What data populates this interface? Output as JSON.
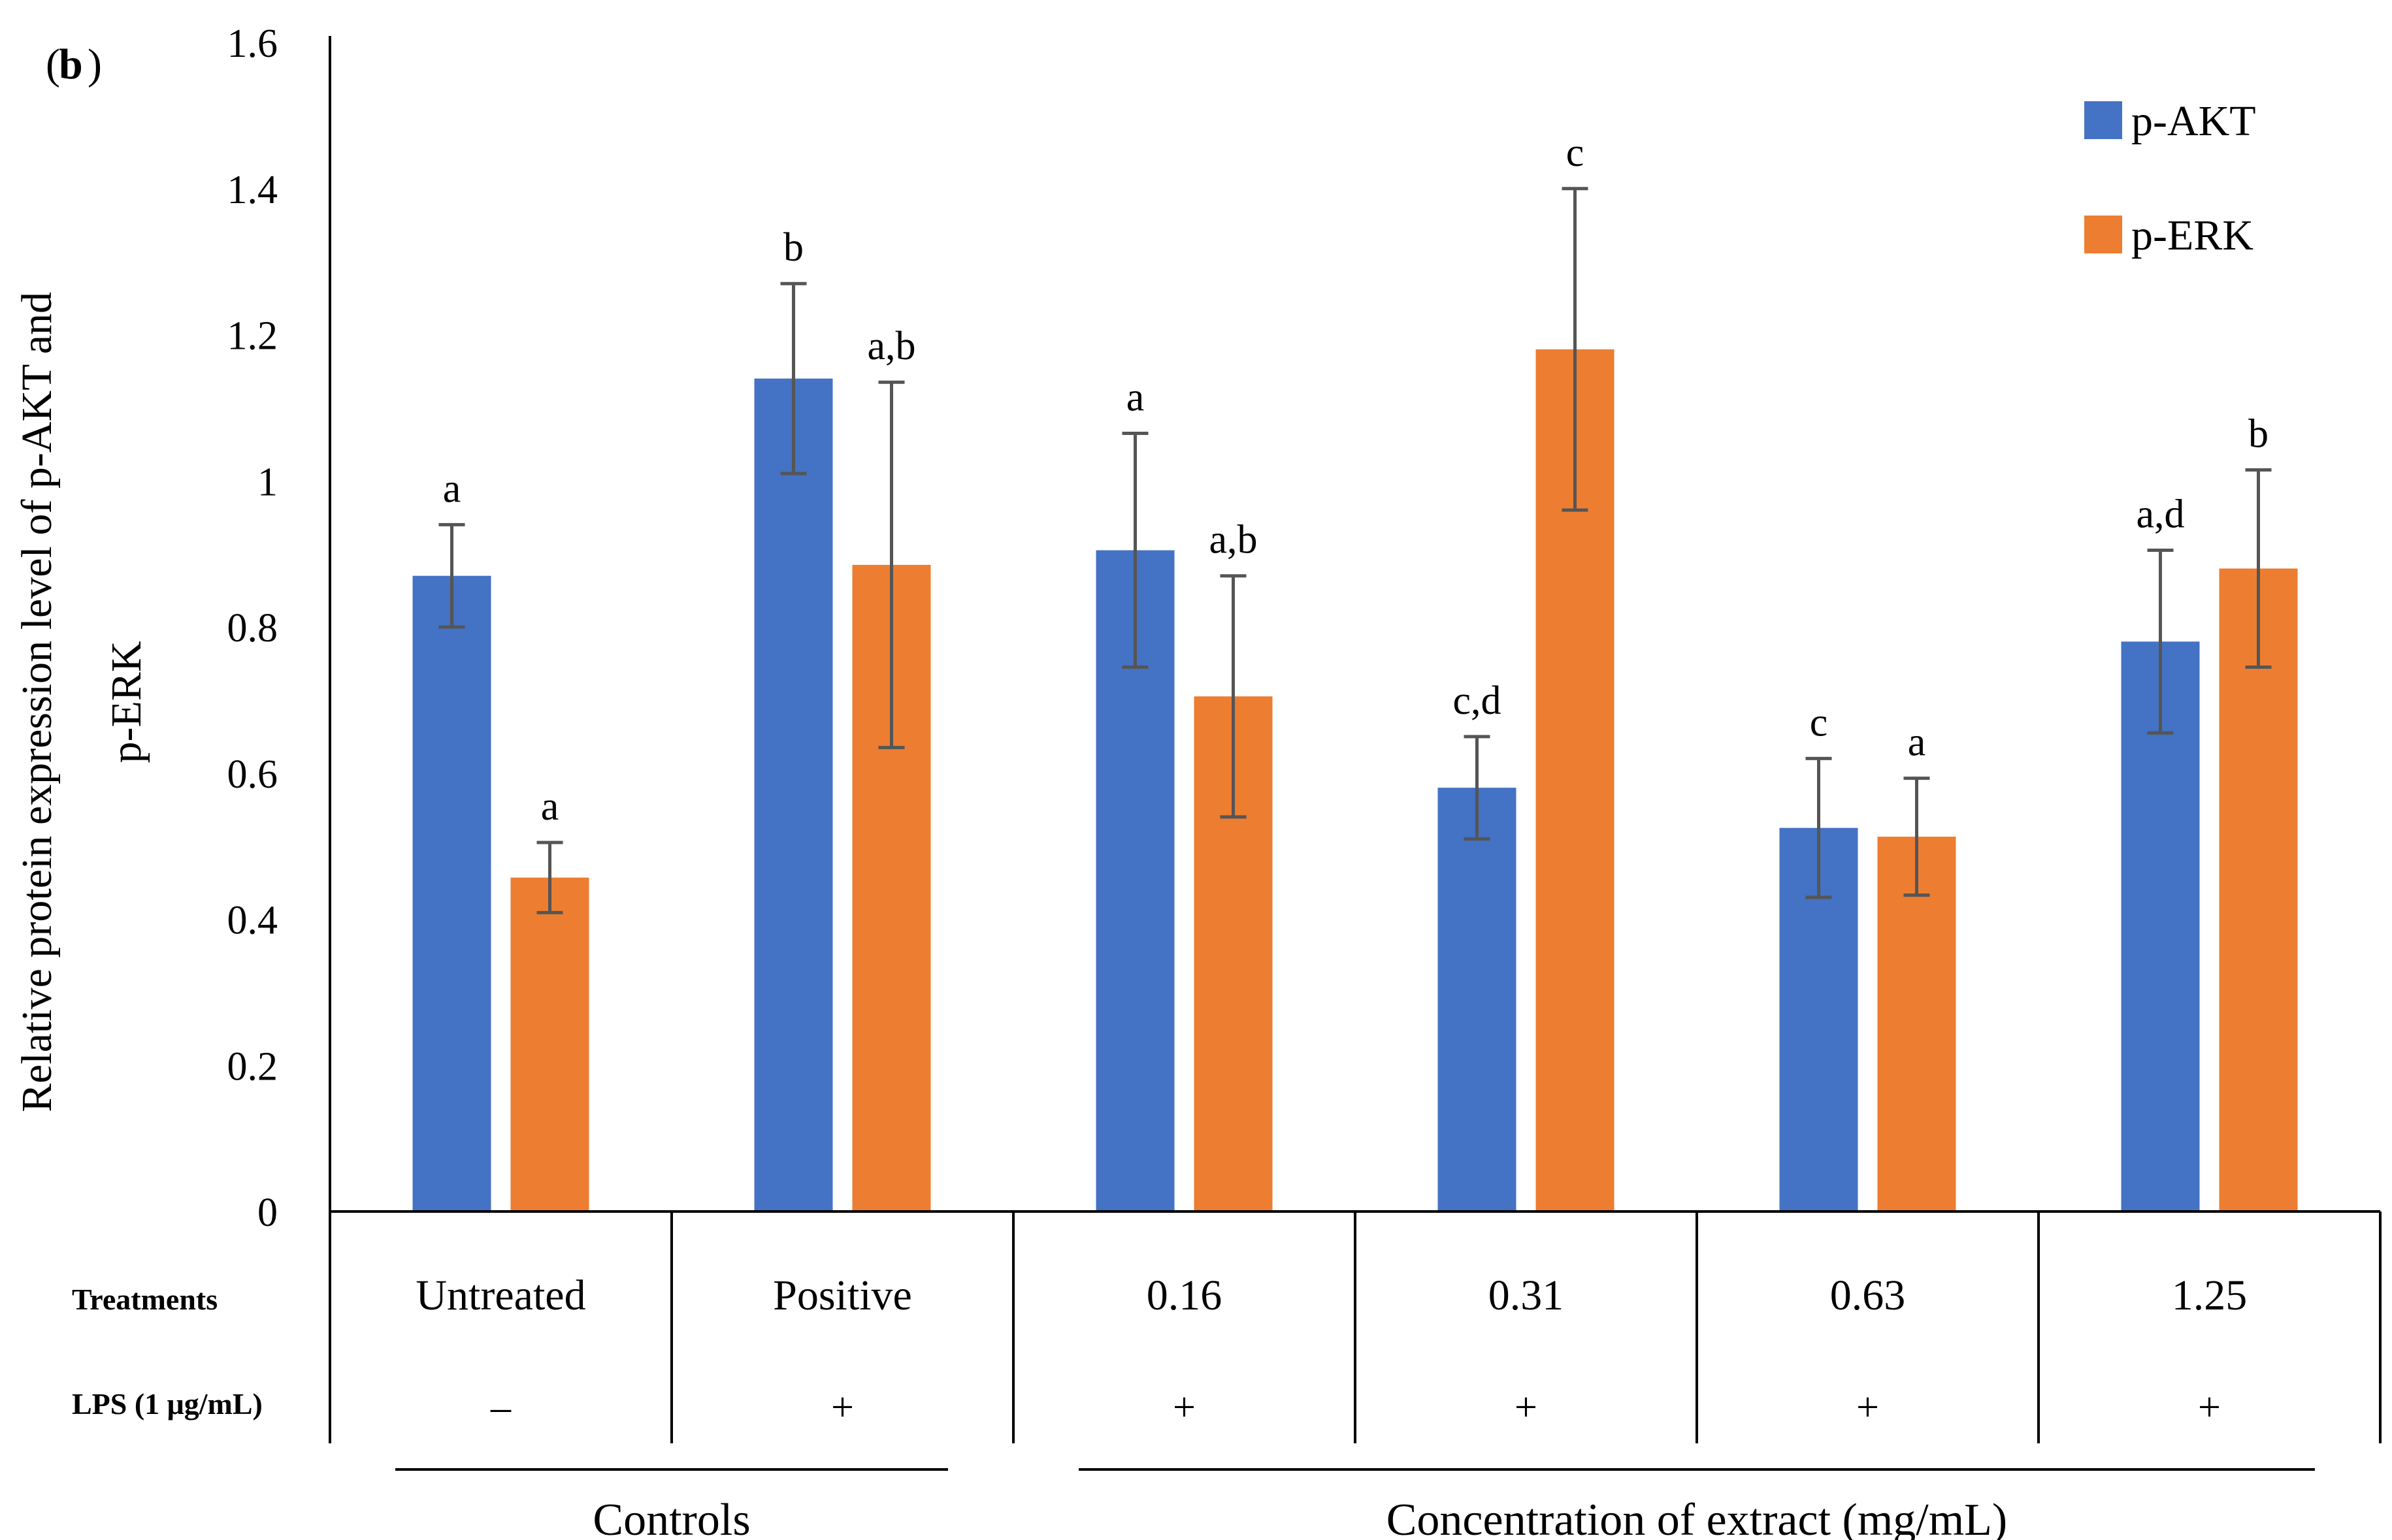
{
  "panel_label": "b",
  "chart_data": {
    "type": "bar",
    "title": "",
    "ylabel_line1": "Relative protein expression level of p-AKT and",
    "ylabel_line2": "p-ERK",
    "ylim": [
      0,
      1.6
    ],
    "yticks": [
      "0",
      "0.2",
      "0.4",
      "0.6",
      "0.8",
      "1",
      "1.2",
      "1.4",
      "1.6"
    ],
    "grid": false,
    "legend_position": "top-right",
    "categories": [
      "Untreated",
      "Positive",
      "0.16",
      "0.31",
      "0.63",
      "1.25"
    ],
    "series": [
      {
        "name": "p-AKT",
        "color": "#4472C4",
        "values": [
          0.87,
          1.14,
          0.905,
          0.58,
          0.525,
          0.78
        ],
        "error": [
          0.07,
          0.13,
          0.16,
          0.07,
          0.095,
          0.125
        ],
        "labels": [
          "a",
          "b",
          "a",
          "c,d",
          "c",
          "a,d"
        ]
      },
      {
        "name": "p-ERK",
        "color": "#ED7D31",
        "values": [
          0.457,
          0.885,
          0.705,
          1.18,
          0.513,
          0.88
        ],
        "error": [
          0.048,
          0.25,
          0.165,
          0.22,
          0.08,
          0.135
        ],
        "labels": [
          "a",
          "a,b",
          "a,b",
          "c",
          "a",
          "b"
        ]
      }
    ],
    "table": {
      "row1_label": "Treatments",
      "row2_label": "LPS (1 μg/mL)",
      "lps": [
        "–",
        "+",
        "+",
        "+",
        "+",
        "+"
      ]
    },
    "groups": [
      {
        "label": "Controls",
        "span": [
          0,
          1
        ]
      },
      {
        "label": "Concentration of extract (mg/mL)",
        "span": [
          2,
          5
        ]
      }
    ]
  }
}
